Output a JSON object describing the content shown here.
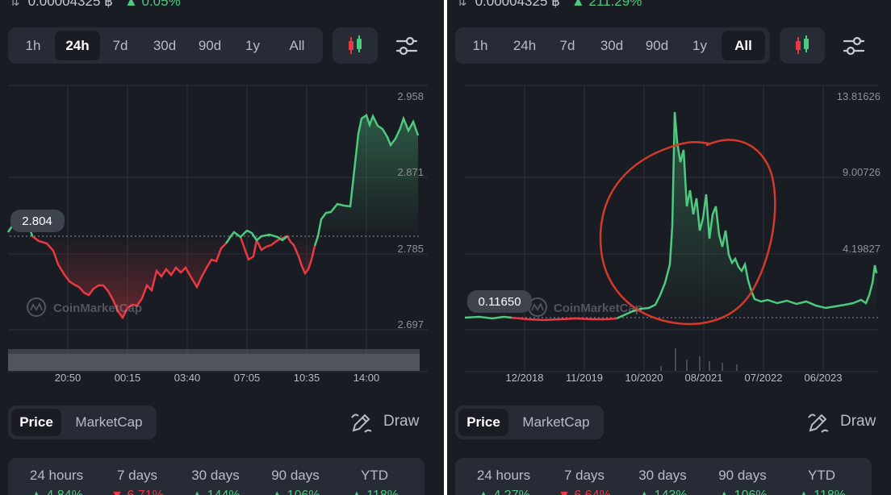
{
  "left": {
    "header": {
      "swap_icon": "swap-arrows-icon",
      "price": "0.00004325 ฿",
      "change": "▲ 0.05%"
    },
    "tabs": [
      "1h",
      "24h",
      "7d",
      "30d",
      "90d",
      "1y",
      "All"
    ],
    "active_tab": "24h",
    "chart": {
      "y_labels": [
        "2.958",
        "2.871",
        "2.785",
        "2.697"
      ],
      "x_labels": [
        "20:50",
        "00:15",
        "03:40",
        "07:05",
        "10:35",
        "14:00"
      ],
      "start_price": "2.804",
      "watermark": "CoinMarketCap"
    },
    "toggle": {
      "price": "Price",
      "marketcap": "MarketCap"
    },
    "draw_label": "Draw",
    "periods": [
      {
        "label": "24 hours",
        "value": "▲ 4.84%",
        "dir": "up"
      },
      {
        "label": "7 days",
        "value": "▼ 6.71%",
        "dir": "down"
      },
      {
        "label": "30 days",
        "value": "▲ 144%",
        "dir": "up"
      },
      {
        "label": "90 days",
        "value": "▲ 106%",
        "dir": "up"
      },
      {
        "label": "YTD",
        "value": "▲ 118%",
        "dir": "up"
      }
    ]
  },
  "right": {
    "header": {
      "swap_icon": "swap-arrows-icon",
      "price": "0.00004325 ฿",
      "change": "▲ 211.29%"
    },
    "tabs": [
      "1h",
      "24h",
      "7d",
      "30d",
      "90d",
      "1y",
      "All"
    ],
    "active_tab": "All",
    "chart": {
      "y_labels": [
        "13.81626",
        "9.00726",
        "4.19827"
      ],
      "x_labels": [
        "12/2018",
        "11/2019",
        "10/2020",
        "08/2021",
        "07/2022",
        "06/2023"
      ],
      "start_price": "0.11650",
      "watermark": "CoinMarketCap"
    },
    "toggle": {
      "price": "Price",
      "marketcap": "MarketCap"
    },
    "draw_label": "Draw",
    "periods": [
      {
        "label": "24 hours",
        "value": "▲ 4.27%",
        "dir": "up"
      },
      {
        "label": "7 days",
        "value": "▼ 6.64%",
        "dir": "down"
      },
      {
        "label": "30 days",
        "value": "▲ 143%",
        "dir": "up"
      },
      {
        "label": "90 days",
        "value": "▲ 106%",
        "dir": "up"
      },
      {
        "label": "YTD",
        "value": "▲ 118%",
        "dir": "up"
      }
    ]
  },
  "colors": {
    "green": "#4dca80",
    "red": "#ea3943",
    "background": "#1a1c23",
    "card": "#272b35",
    "annotation": "#d33a2a"
  },
  "icons": [
    "candlestick-icon",
    "settings-sliders-icon",
    "draw-pencil-icon",
    "coinmarketcap-logo-icon",
    "swap-arrows-icon"
  ]
}
